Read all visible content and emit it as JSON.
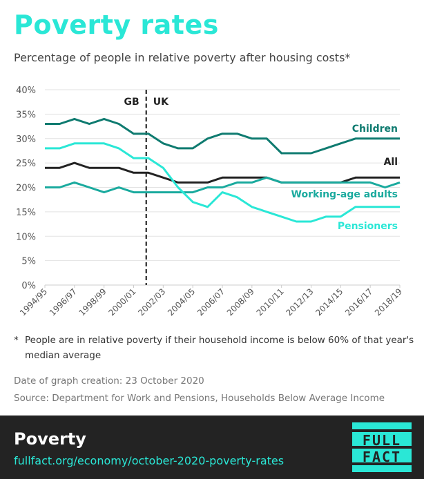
{
  "header": {
    "title": "Poverty rates",
    "subtitle": "Percentage of people in relative poverty after housing costs*"
  },
  "chart_data": {
    "type": "line",
    "title": "Poverty rates",
    "ylabel": "Percentage of people in relative poverty after housing costs",
    "ylim": [
      0,
      40
    ],
    "yticks": [
      "0%",
      "5%",
      "10%",
      "15%",
      "20%",
      "25%",
      "30%",
      "35%",
      "40%"
    ],
    "x": [
      "1994/95",
      "1995/96",
      "1996/97",
      "1997/98",
      "1998/99",
      "1999/00",
      "2000/01",
      "2001/02",
      "2002/03",
      "2003/04",
      "2004/05",
      "2005/06",
      "2006/07",
      "2007/08",
      "2008/09",
      "2009/10",
      "2010/11",
      "2011/12",
      "2012/13",
      "2013/14",
      "2014/15",
      "2015/16",
      "2016/17",
      "2017/18",
      "2018/19"
    ],
    "xtick_labels": [
      "1994/95",
      "1996/97",
      "1998/99",
      "2000/01",
      "2002/03",
      "2004/05",
      "2006/07",
      "2008/09",
      "2010/11",
      "2012/13",
      "2014/15",
      "2016/17",
      "2018/19"
    ],
    "divider": {
      "at": "2001/02",
      "left_label": "GB",
      "right_label": "UK"
    },
    "series": [
      {
        "name": "Children",
        "color": "#0f7b70",
        "values": [
          33,
          33,
          34,
          33,
          34,
          33,
          31,
          31,
          29,
          28,
          28,
          30,
          31,
          31,
          30,
          30,
          27,
          27,
          27,
          28,
          29,
          30,
          30,
          30,
          30
        ]
      },
      {
        "name": "All",
        "color": "#222222",
        "values": [
          24,
          24,
          25,
          24,
          24,
          24,
          23,
          23,
          22,
          21,
          21,
          21,
          22,
          22,
          22,
          22,
          21,
          21,
          21,
          21,
          21,
          22,
          22,
          22,
          22
        ]
      },
      {
        "name": "Working-age adults",
        "color": "#1aaa9e",
        "values": [
          20,
          20,
          21,
          20,
          19,
          20,
          19,
          19,
          19,
          19,
          19,
          20,
          20,
          21,
          21,
          22,
          21,
          21,
          21,
          21,
          21,
          21,
          21,
          20,
          21
        ]
      },
      {
        "name": "Pensioners",
        "color": "#2ae7d6",
        "values": [
          28,
          28,
          29,
          29,
          29,
          28,
          26,
          26,
          24,
          20,
          17,
          16,
          19,
          18,
          16,
          15,
          14,
          13,
          13,
          14,
          14,
          16,
          16,
          16,
          16
        ]
      }
    ]
  },
  "footnote": {
    "marker": "*",
    "text": "People are in relative poverty if their household income is below 60% of that year's median average"
  },
  "meta": {
    "date": "Date of graph creation: 23 October 2020",
    "source": "Source: Department for Work and Pensions, Households Below Average Income"
  },
  "footer": {
    "title": "Poverty",
    "url": "fullfact.org/economy/october-2020-poverty-rates",
    "logo_line1": "FULL",
    "logo_line2": "FACT"
  },
  "colors": {
    "accent": "#2ae7d6",
    "footer_bg": "#232323"
  }
}
